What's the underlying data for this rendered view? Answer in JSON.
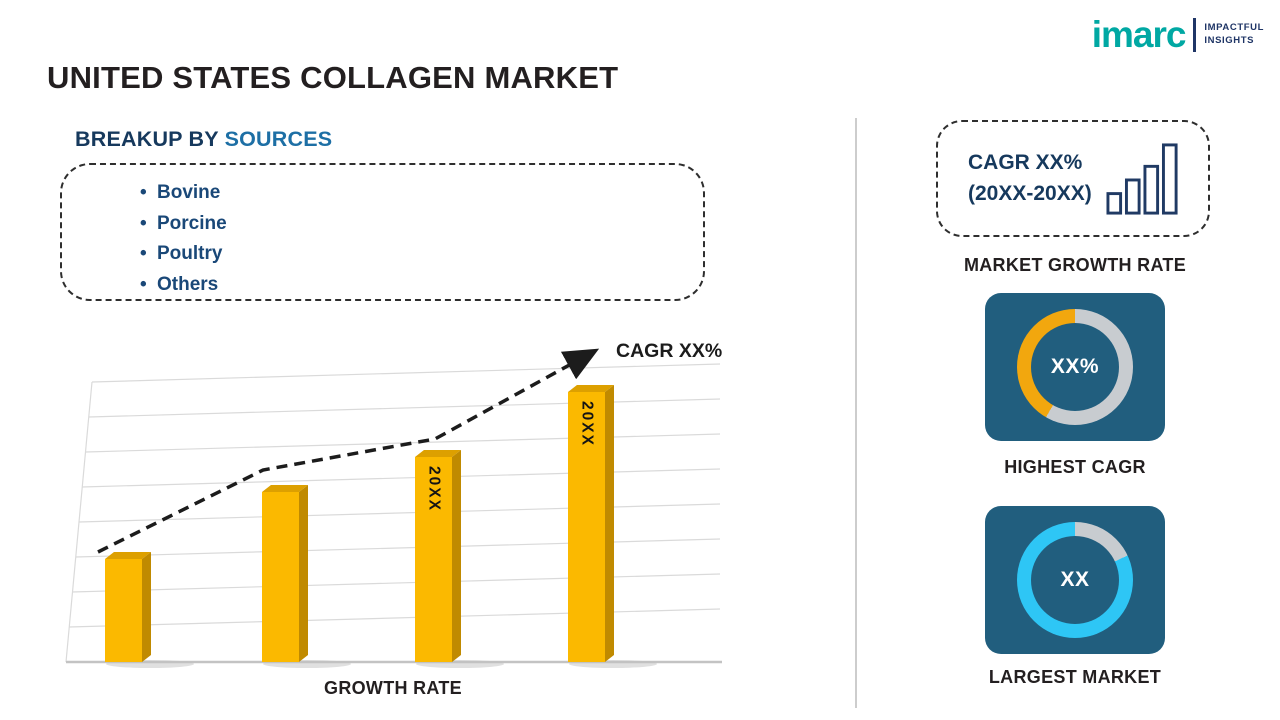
{
  "logo": {
    "name": "imarc",
    "tagline_line1": "IMPACTFUL",
    "tagline_line2": "INSIGHTS"
  },
  "title": "UNITED STATES COLLAGEN MARKET",
  "breakup": {
    "heading_prefix": "BREAKUP BY ",
    "heading_highlight": "SOURCES",
    "items": [
      "Bovine",
      "Porcine",
      "Poultry",
      "Others"
    ]
  },
  "chart_data": [
    {
      "type": "bar",
      "title": "",
      "xlabel": "GROWTH RATE",
      "ylabel": "",
      "categories": [
        "",
        "",
        "20XX",
        "20XX"
      ],
      "bar_labels": [
        "",
        "",
        "20XX",
        "20XX"
      ],
      "values": [
        38,
        63,
        76,
        100
      ],
      "value_unit": "relative height, axis unlabeled",
      "trend_annotation": "CAGR XX%",
      "trend_style": "dashed-arrow-up",
      "bar_color": "#FBB900",
      "grid": "slanted perspective gridlines",
      "legend": "none"
    },
    {
      "type": "pie",
      "subtype": "donut",
      "label": "HIGHEST CAGR",
      "center_value": "XX%",
      "fill_fraction": 0.42,
      "fill_start_deg": 210,
      "fill_end_deg": 360,
      "fill_color": "#F2A70E",
      "track_color": "#C8CCD0"
    },
    {
      "type": "pie",
      "subtype": "donut",
      "label": "LARGEST MARKET",
      "center_value": "XX",
      "fill_fraction": 0.82,
      "fill_start_deg": 65,
      "fill_end_deg": 360,
      "fill_color": "#2EC6F5",
      "track_color": "#C8CCD0"
    }
  ],
  "right_panel": {
    "cagr_box": {
      "line1": "CAGR XX%",
      "line2": "(20XX-20XX)"
    },
    "market_growth_rate_label": "MARKET GROWTH RATE",
    "highest_cagr_label": "HIGHEST CAGR",
    "largest_market_label": "LARGEST MARKET"
  },
  "colors": {
    "accent_teal": "#00A8A3",
    "navy": "#16395D",
    "blue_highlight": "#1D6FA5",
    "bar_gold": "#FBB900",
    "tile_blue": "#215E7E",
    "donut_amber": "#F2A70E",
    "donut_cyan": "#2EC6F5"
  }
}
